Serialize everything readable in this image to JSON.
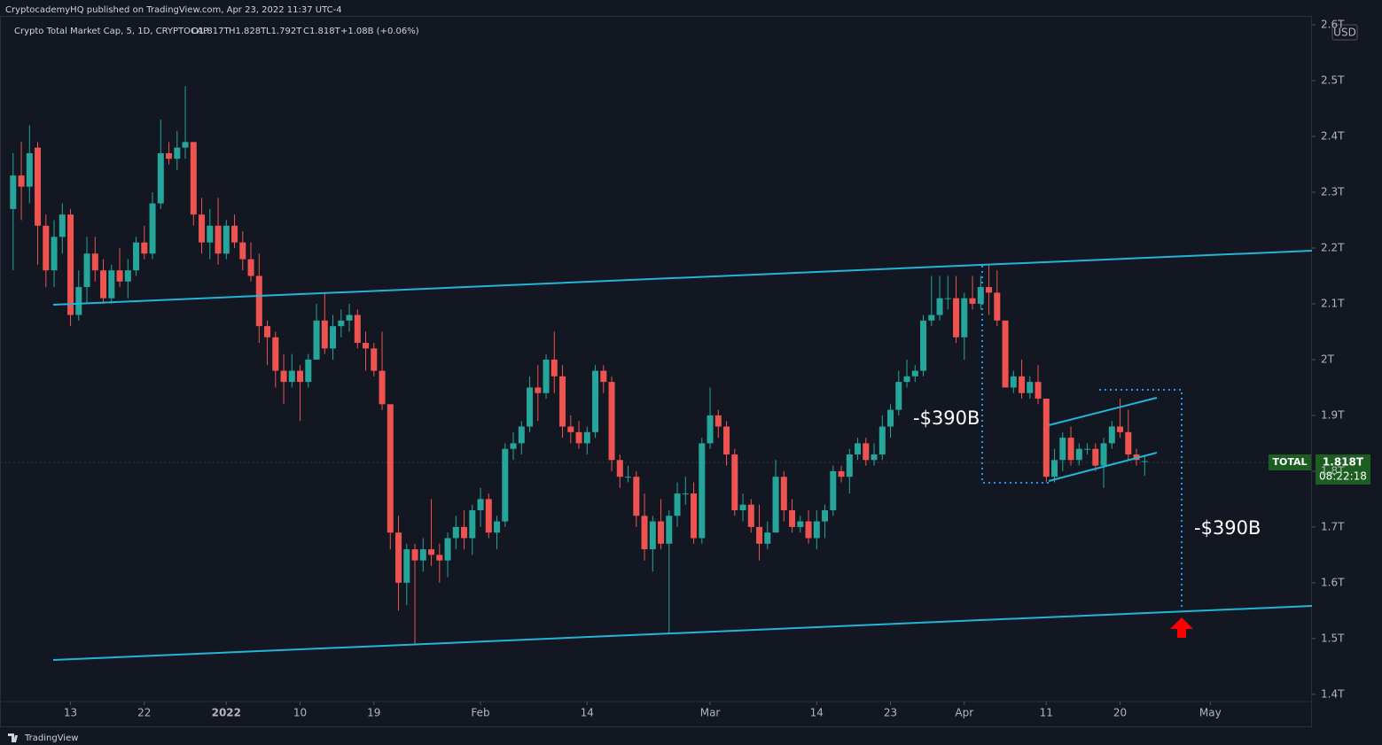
{
  "header": {
    "publisher": "CryptocademyHQ published on TradingView.com, Apr 23, 2022 11:37 UTC-4",
    "symbol": "Crypto Total Market Cap, 5, 1D, CRYPTOCAP",
    "ohlc": [
      "O1.817T",
      "H1.828T",
      "L1.792T",
      "C1.818T",
      "+1.08B (+0.06%)"
    ]
  },
  "chart_data": {
    "type": "candlestick",
    "up_color": "#26a69a",
    "down_color": "#ef5350",
    "open": [
      2.27,
      2.33,
      2.31,
      2.38,
      2.24,
      2.16,
      2.22,
      2.26,
      2.08,
      2.13,
      2.19,
      2.16,
      2.11,
      2.16,
      2.14,
      2.16,
      2.21,
      2.19,
      2.28,
      2.37,
      2.36,
      2.38,
      2.39,
      2.26,
      2.21,
      2.24,
      2.19,
      2.24,
      2.21,
      2.18,
      2.15,
      2.06,
      2.04,
      1.98,
      1.96,
      1.98,
      1.96,
      2.0,
      2.07,
      2.02,
      2.06,
      2.07,
      2.08,
      2.03,
      2.02,
      1.98,
      1.92,
      1.69,
      1.6,
      1.66,
      1.64,
      1.66,
      1.65,
      1.64,
      1.68,
      1.7,
      1.68,
      1.73,
      1.75,
      1.69,
      1.71,
      1.84,
      1.85,
      1.88,
      1.95,
      1.94,
      2.0,
      1.97,
      1.88,
      1.87,
      1.85,
      1.87,
      1.98,
      1.96,
      1.82,
      1.79,
      1.79,
      1.72,
      1.66,
      1.71,
      1.67,
      1.72,
      1.76,
      1.76,
      1.68,
      1.85,
      1.9,
      1.88,
      1.83,
      1.73,
      1.74,
      1.7,
      1.67,
      1.69,
      1.79,
      1.73,
      1.7,
      1.71,
      1.68,
      1.71,
      1.73,
      1.8,
      1.79,
      1.83,
      1.85,
      1.82,
      1.83,
      1.88,
      1.91,
      1.96,
      1.97,
      1.98,
      2.07,
      2.08,
      2.11,
      2.11,
      2.04,
      2.11,
      2.1,
      2.13,
      2.12,
      2.07,
      1.95,
      1.97,
      1.94,
      1.96,
      1.93,
      1.79,
      1.82,
      1.86,
      1.82,
      1.84,
      1.84,
      1.81,
      1.85,
      1.88,
      1.87,
      1.83,
      1.817
    ],
    "high": [
      2.37,
      2.39,
      2.42,
      2.39,
      2.26,
      2.25,
      2.28,
      2.27,
      2.16,
      2.22,
      2.22,
      2.18,
      2.17,
      2.2,
      2.18,
      2.22,
      2.24,
      2.3,
      2.43,
      2.39,
      2.41,
      2.49,
      2.39,
      2.29,
      2.27,
      2.29,
      2.25,
      2.26,
      2.23,
      2.21,
      2.19,
      2.07,
      2.05,
      2.01,
      2.01,
      1.99,
      2.01,
      2.1,
      2.12,
      2.08,
      2.09,
      2.1,
      2.09,
      2.05,
      2.03,
      2.05,
      1.92,
      1.72,
      1.67,
      1.67,
      1.68,
      1.75,
      1.67,
      1.69,
      1.72,
      1.73,
      1.74,
      1.77,
      1.76,
      1.72,
      1.85,
      1.87,
      1.89,
      1.97,
      1.99,
      2.01,
      2.05,
      1.99,
      1.9,
      1.89,
      1.88,
      1.99,
      1.99,
      1.97,
      1.83,
      1.81,
      1.8,
      1.76,
      1.72,
      1.75,
      1.73,
      1.78,
      1.79,
      1.78,
      1.86,
      1.95,
      1.91,
      1.89,
      1.84,
      1.76,
      1.75,
      1.74,
      1.71,
      1.82,
      1.8,
      1.75,
      1.72,
      1.73,
      1.73,
      1.74,
      1.81,
      1.81,
      1.84,
      1.86,
      1.86,
      1.85,
      1.9,
      1.92,
      1.98,
      2.0,
      1.99,
      2.08,
      2.15,
      2.15,
      2.15,
      2.15,
      2.12,
      2.15,
      2.15,
      2.17,
      2.16,
      2.07,
      1.98,
      2.0,
      1.97,
      1.99,
      1.93,
      1.84,
      1.87,
      1.88,
      1.85,
      1.85,
      1.85,
      1.86,
      1.89,
      1.93,
      1.91,
      1.84,
      1.828
    ],
    "low": [
      2.16,
      2.25,
      2.28,
      2.17,
      2.13,
      2.13,
      2.19,
      2.06,
      2.07,
      2.1,
      2.14,
      2.1,
      2.1,
      2.13,
      2.11,
      2.15,
      2.18,
      2.18,
      2.27,
      2.35,
      2.34,
      2.36,
      2.24,
      2.19,
      2.18,
      2.17,
      2.18,
      2.2,
      2.16,
      2.14,
      2.03,
      1.99,
      1.95,
      1.92,
      1.95,
      1.89,
      1.95,
      2.0,
      2.01,
      2.0,
      2.04,
      2.05,
      2.02,
      1.98,
      1.97,
      1.91,
      1.66,
      1.55,
      1.56,
      1.49,
      1.62,
      1.63,
      1.6,
      1.61,
      1.66,
      1.66,
      1.65,
      1.7,
      1.68,
      1.66,
      1.7,
      1.82,
      1.83,
      1.87,
      1.89,
      1.93,
      1.94,
      1.86,
      1.85,
      1.84,
      1.83,
      1.86,
      1.94,
      1.8,
      1.77,
      1.78,
      1.7,
      1.64,
      1.62,
      1.66,
      1.51,
      1.7,
      1.74,
      1.67,
      1.67,
      1.84,
      1.86,
      1.81,
      1.72,
      1.71,
      1.69,
      1.64,
      1.66,
      1.69,
      1.71,
      1.69,
      1.69,
      1.67,
      1.66,
      1.68,
      1.72,
      1.78,
      1.76,
      1.82,
      1.81,
      1.81,
      1.82,
      1.86,
      1.9,
      1.95,
      1.96,
      1.97,
      2.06,
      2.07,
      2.09,
      2.03,
      2.0,
      2.09,
      2.09,
      2.08,
      2.06,
      1.95,
      1.94,
      1.93,
      1.93,
      1.92,
      1.78,
      1.78,
      1.8,
      1.81,
      1.81,
      1.83,
      1.8,
      1.77,
      1.84,
      1.86,
      1.82,
      1.81,
      1.792
    ],
    "close": [
      2.33,
      2.31,
      2.37,
      2.24,
      2.16,
      2.22,
      2.26,
      2.08,
      2.13,
      2.19,
      2.16,
      2.11,
      2.16,
      2.14,
      2.16,
      2.21,
      2.19,
      2.28,
      2.37,
      2.36,
      2.38,
      2.39,
      2.26,
      2.21,
      2.24,
      2.19,
      2.24,
      2.21,
      2.18,
      2.15,
      2.06,
      2.04,
      1.98,
      1.96,
      1.98,
      1.96,
      2.0,
      2.07,
      2.02,
      2.06,
      2.07,
      2.08,
      2.03,
      2.02,
      1.98,
      1.92,
      1.69,
      1.6,
      1.66,
      1.64,
      1.66,
      1.65,
      1.64,
      1.68,
      1.7,
      1.68,
      1.73,
      1.75,
      1.69,
      1.71,
      1.84,
      1.85,
      1.88,
      1.95,
      1.94,
      2.0,
      1.97,
      1.88,
      1.87,
      1.85,
      1.87,
      1.98,
      1.96,
      1.82,
      1.79,
      1.79,
      1.72,
      1.66,
      1.71,
      1.67,
      1.72,
      1.76,
      1.76,
      1.68,
      1.85,
      1.9,
      1.88,
      1.83,
      1.73,
      1.74,
      1.7,
      1.67,
      1.69,
      1.79,
      1.73,
      1.7,
      1.71,
      1.68,
      1.71,
      1.73,
      1.8,
      1.79,
      1.83,
      1.85,
      1.82,
      1.83,
      1.88,
      1.91,
      1.96,
      1.97,
      1.98,
      2.07,
      2.08,
      2.11,
      2.11,
      2.04,
      2.11,
      2.1,
      2.13,
      2.12,
      2.07,
      1.95,
      1.97,
      1.94,
      1.96,
      1.93,
      1.79,
      1.82,
      1.86,
      1.82,
      1.84,
      1.84,
      1.81,
      1.85,
      1.88,
      1.87,
      1.83,
      1.82,
      1.818
    ],
    "xlim": [
      -1.6,
      158.4
    ],
    "xticks": [
      {
        "value": 7,
        "label": "13"
      },
      {
        "value": 16,
        "label": "22"
      },
      {
        "value": 26,
        "label": "2022"
      },
      {
        "value": 35,
        "label": "10"
      },
      {
        "value": 44,
        "label": "19"
      },
      {
        "value": 57,
        "label": "Feb"
      },
      {
        "value": 70,
        "label": "14"
      },
      {
        "value": 85,
        "label": "Mar"
      },
      {
        "value": 98,
        "label": "14"
      },
      {
        "value": 107,
        "label": "23"
      },
      {
        "value": 116,
        "label": "Apr"
      },
      {
        "value": 126,
        "label": "11"
      },
      {
        "value": 135,
        "label": "20"
      },
      {
        "value": 146,
        "label": "May"
      }
    ],
    "ylim": [
      1.387,
      2.616
    ],
    "yticks": [
      {
        "value": 1.4,
        "label": "1.4T"
      },
      {
        "value": 1.5,
        "label": "1.5T"
      },
      {
        "value": 1.6,
        "label": "1.6T"
      },
      {
        "value": 1.7,
        "label": "1.7T"
      },
      {
        "value": 1.8,
        "label": "1.8T"
      },
      {
        "value": 1.9,
        "label": "1.9T"
      },
      {
        "value": 2.0,
        "label": "2T"
      },
      {
        "value": 2.1,
        "label": "2.1T"
      },
      {
        "value": 2.2,
        "label": "2.2T"
      },
      {
        "value": 2.3,
        "label": "2.3T"
      },
      {
        "value": 2.4,
        "label": "2.4T"
      },
      {
        "value": 2.5,
        "label": "2.5T"
      },
      {
        "value": 2.6,
        "label": "2.6T"
      }
    ],
    "grid": false,
    "currency": "USD",
    "price_tag": {
      "symbol": "TOTAL",
      "price": "1.818T",
      "countdown": "08:22:18"
    },
    "annotations": [
      "-$390B",
      "-$390B"
    ],
    "branding": "TradingView"
  }
}
